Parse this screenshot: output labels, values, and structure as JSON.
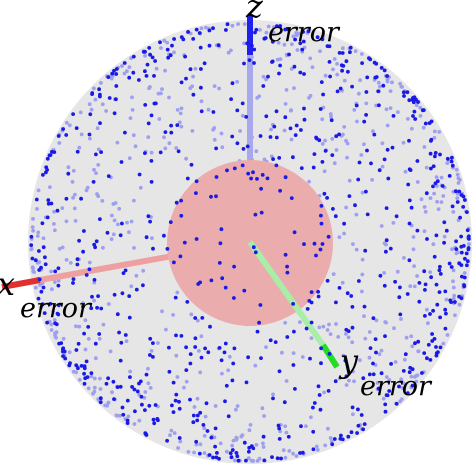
{
  "axes": {
    "x": {
      "letter": "x",
      "subscript": "error",
      "color": "#e03030",
      "color_light": "#eea0a0"
    },
    "y": {
      "letter": "y",
      "subscript": "error",
      "color": "#22dd22",
      "color_light": "#a8eea8"
    },
    "z": {
      "letter": "z",
      "subscript": "error",
      "color": "#2020ee",
      "color_light": "#a8a8ee"
    }
  },
  "colors": {
    "outer_sphere": "#e6e6e6",
    "inner_sphere": "#eaacac",
    "point_front": "#1a1ae6",
    "point_back": "#9f9ff0"
  }
}
